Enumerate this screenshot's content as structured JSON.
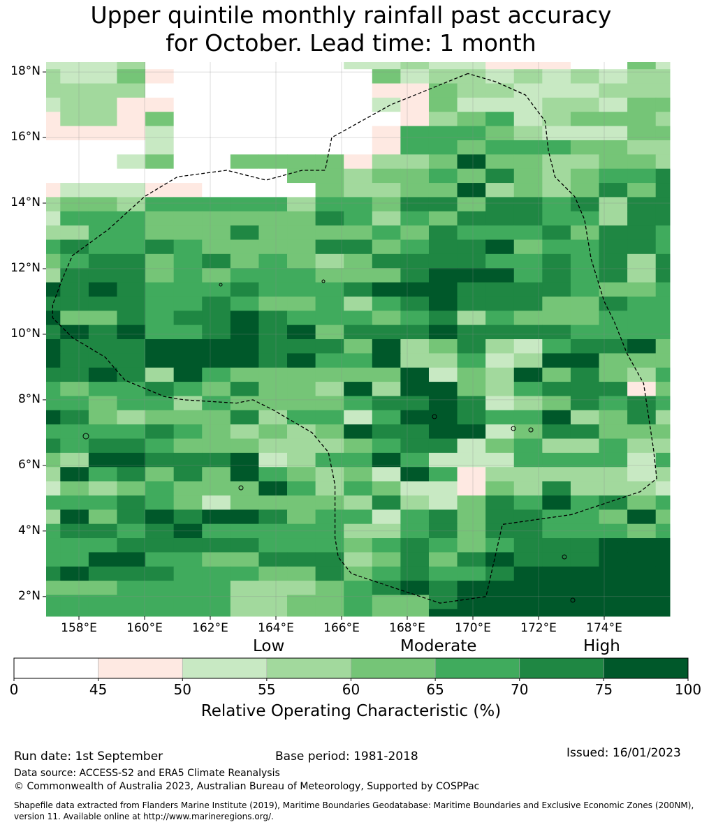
{
  "title": {
    "line1": "Upper quintile monthly rainfall past accuracy",
    "line2": "for October. Lead time: 1 month"
  },
  "map": {
    "lon_range": [
      157,
      176
    ],
    "lat_range": [
      1.4,
      18.3
    ],
    "lat_ticks": [
      "2°N",
      "4°N",
      "6°N",
      "8°N",
      "10°N",
      "12°N",
      "14°N",
      "16°N",
      "18°N"
    ],
    "lat_values": [
      2,
      4,
      6,
      8,
      10,
      12,
      14,
      16,
      18
    ],
    "lon_ticks": [
      "158°E",
      "160°E",
      "162°E",
      "164°E",
      "166°E",
      "168°E",
      "170°E",
      "172°E",
      "174°E"
    ],
    "lon_values": [
      158,
      160,
      162,
      164,
      166,
      168,
      170,
      172,
      174
    ],
    "grid_class_rows_north_to_south": [
      "22230000000223221110042",
      "32241000000042332323233",
      "33330000000011433222333",
      "23311000000021422233244",
      "13314000000001345234443",
      "11112000000015554322244",
      "00002000000015545554433",
      "00024004444133474433443",
      "00000000044344546434556",
      "12221100004334473434646",
      "34435555535546646656366",
      "25554444446535466655366",
      "33554446444454655564665",
      "56556544446645667455665",
      "45664564543466665565636",
      "36664545554446777565636",
      "76765556555677766665445",
      "66665565445356766644655",
      "74465667655545635444555",
      "67675567674666766665555",
      "76667777666473463256674",
      "76667777675573352377444",
      "66763754444447243746435",
      "54556546443737743566614",
      "55455354444566762346565",
      "76434446355257765573463",
      "55556543434766772466444",
      "65665444333456624533533",
      "43776667235575222555525",
      "37564647543427513333323",
      "24345444753542214363332",
      "55565424444363246575645",
      "37467677645525646655474",
      "56656755555335646655545",
      "55566666555456545666777",
      "55775544666346467666777",
      "67666555446456556777777",
      "44455553334567677777777",
      "55555553344544677777777",
      "55555553344544777777777"
    ],
    "colormap": [
      "#ffffff",
      "#fee9e2",
      "#c8e9c3",
      "#a2d99d",
      "#75c577",
      "#40ab5d",
      "#1f8743",
      "#00582a"
    ],
    "eez_boundary_lonlat": [
      [
        169.85,
        17.95
      ],
      [
        167.5,
        17.0
      ],
      [
        165.7,
        16.0
      ],
      [
        165.5,
        15.0
      ],
      [
        164.8,
        15.0
      ],
      [
        163.7,
        14.7
      ],
      [
        162.5,
        15.0
      ],
      [
        161.0,
        14.8
      ],
      [
        160.0,
        14.2
      ],
      [
        158.9,
        13.2
      ],
      [
        157.8,
        12.4
      ],
      [
        157.5,
        11.7
      ],
      [
        157.2,
        10.9
      ],
      [
        157.2,
        10.5
      ],
      [
        157.8,
        9.9
      ],
      [
        158.8,
        9.3
      ],
      [
        159.4,
        8.6
      ],
      [
        160.6,
        8.1
      ],
      [
        161.2,
        8.0
      ],
      [
        162.8,
        7.9
      ],
      [
        163.3,
        8.0
      ],
      [
        163.9,
        7.7
      ],
      [
        165.1,
        7.0
      ],
      [
        165.6,
        6.4
      ],
      [
        165.8,
        5.4
      ],
      [
        165.8,
        3.8
      ],
      [
        165.9,
        3.2
      ],
      [
        166.3,
        2.7
      ],
      [
        169.0,
        1.8
      ],
      [
        170.4,
        2.0
      ],
      [
        170.9,
        4.2
      ],
      [
        173.0,
        4.5
      ],
      [
        175.1,
        5.2
      ],
      [
        175.6,
        5.6
      ],
      [
        175.5,
        6.5
      ],
      [
        175.2,
        8.5
      ],
      [
        174.7,
        9.4
      ],
      [
        174.3,
        10.4
      ],
      [
        174.0,
        11.0
      ],
      [
        173.6,
        12.3
      ],
      [
        173.4,
        13.5
      ],
      [
        173.1,
        14.2
      ],
      [
        172.8,
        14.5
      ],
      [
        172.5,
        14.8
      ],
      [
        172.3,
        15.6
      ],
      [
        172.2,
        16.5
      ],
      [
        171.6,
        17.3
      ],
      [
        170.7,
        17.7
      ],
      [
        169.85,
        17.95
      ]
    ]
  },
  "colorbar": {
    "categories": [
      {
        "label": "Low",
        "at": 55
      },
      {
        "label": "Moderate",
        "at": 65
      },
      {
        "label": "High",
        "at": 75
      }
    ],
    "ticks": [
      "0",
      "45",
      "50",
      "55",
      "60",
      "65",
      "70",
      "75",
      "100"
    ],
    "tick_positions": [
      0,
      1,
      2,
      3,
      4,
      5,
      6,
      7,
      8
    ],
    "segment_colors": [
      "#ffffff",
      "#fee9e2",
      "#c8e9c3",
      "#a2d99d",
      "#75c577",
      "#40ab5d",
      "#1f8743",
      "#00582a"
    ],
    "label": "Relative Operating Characteristic (%)"
  },
  "footer": {
    "run_date": "Run date: 1st September",
    "base_period": "Base period: 1981-2018",
    "issued": "Issued: 16/01/2023",
    "data_source": "Data source: ACCESS-S2 and ERA5 Climate Reanalysis",
    "copyright": "© Commonwealth of Australia 2023, Australian Bureau of Meteorology, Supported by COSPPac",
    "shapefile_line1": "Shapefile data extracted from Flanders Marine Institute (2019), Maritime Boundaries Geodatabase: Maritime Boundaries and Exclusive Economic Zones (200NM),",
    "shapefile_line2": "version 11. Available online at http://www.marineregions.org/."
  }
}
